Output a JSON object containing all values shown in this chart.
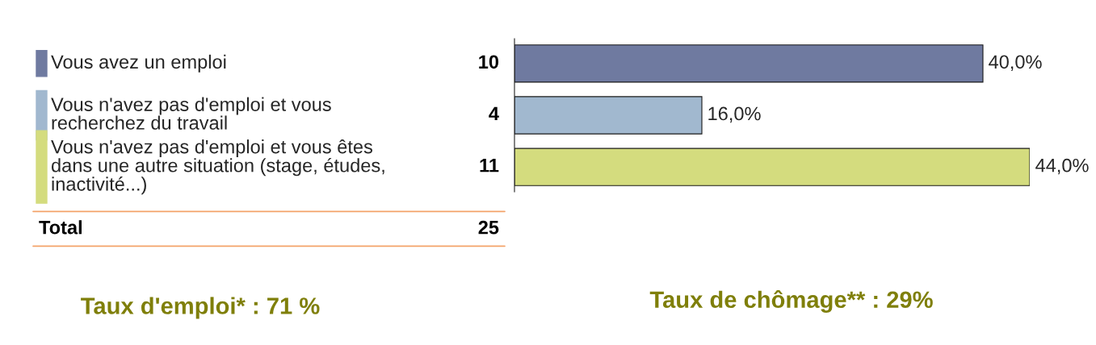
{
  "chart_data": {
    "type": "bar",
    "orientation": "horizontal",
    "categories": [
      "Vous avez un emploi",
      "Vous n'avez pas d'emploi et vous\nrecherchez du travail",
      "Vous n'avez pas d'emploi et vous êtes\ndans une autre situation (stage, études,\ninactivité...)"
    ],
    "values": [
      40,
      16,
      44
    ],
    "value_labels": [
      "40,0%",
      "16,0%",
      "44,0%"
    ],
    "colors": [
      "#6f7aa0",
      "#a1b8cf",
      "#d4dc7e"
    ],
    "xlim": [
      0,
      44
    ],
    "annotations": [
      "10",
      "4",
      "11",
      "Total",
      "25",
      "Taux d'emploi* : 71 %",
      "Taux de chômage** : 29%"
    ]
  }
}
